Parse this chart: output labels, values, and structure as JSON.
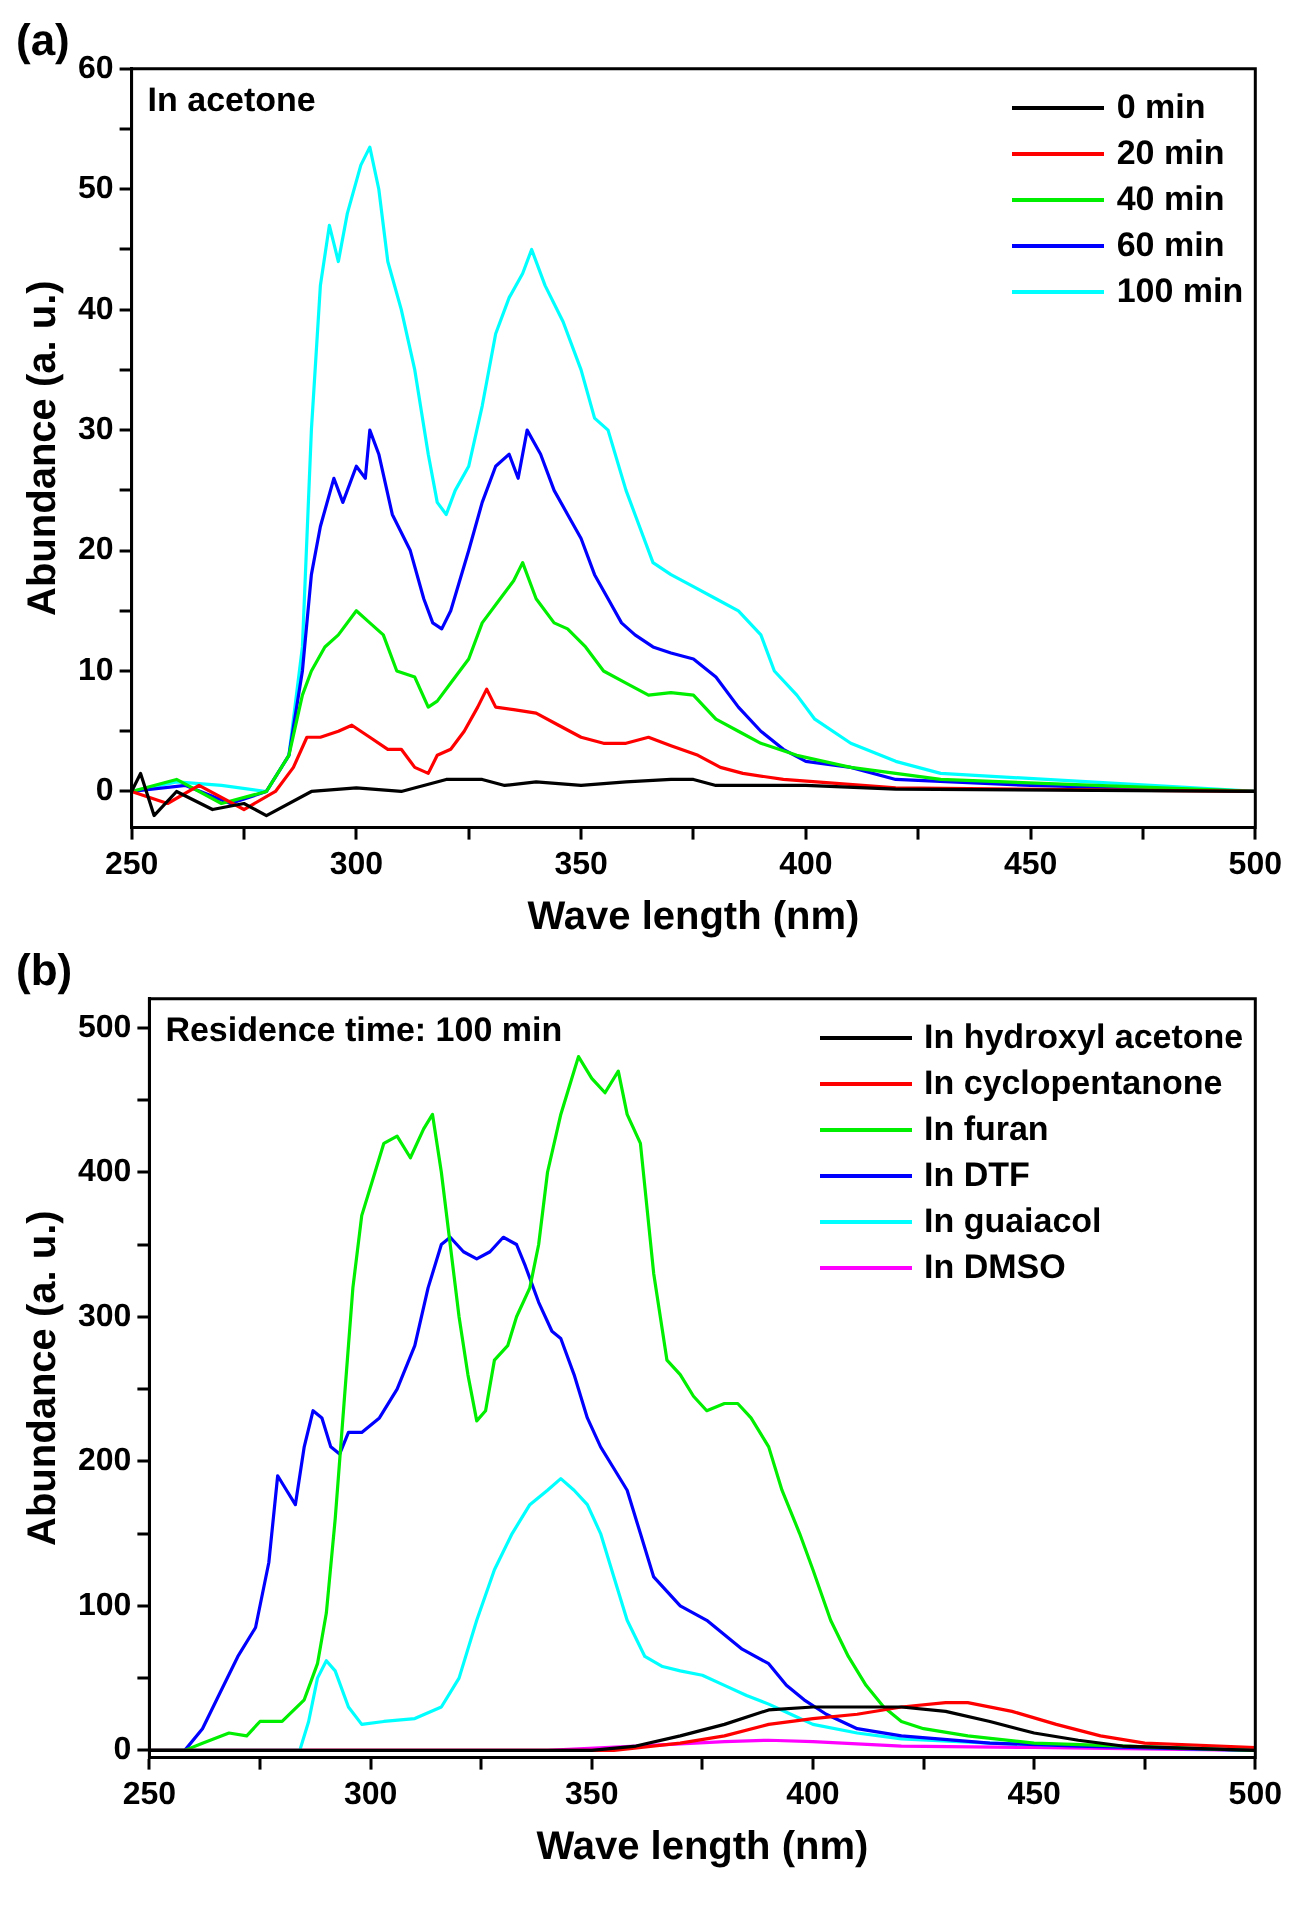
{
  "chart_data": [
    {
      "type": "line",
      "title": "(a)",
      "xlabel": "Wave length (nm)",
      "ylabel": "Abundance (a. u.)",
      "annotations": [
        "In acetone"
      ],
      "legend": "top right",
      "grid": false,
      "xlim": [
        250,
        500
      ],
      "xticks": [
        250,
        {
          "value": 275,
          "label": null
        },
        300,
        {
          "value": 325,
          "label": null
        },
        350,
        {
          "value": 375,
          "label": null
        },
        400,
        {
          "value": 425,
          "label": null
        },
        450,
        {
          "value": 475,
          "label": null
        },
        500
      ],
      "ylim": [
        -3,
        60
      ],
      "yticks": [
        0,
        {
          "value": 5,
          "label": null
        },
        10,
        {
          "value": 15,
          "label": null
        },
        20,
        {
          "value": 25,
          "label": null
        },
        30,
        {
          "value": 35,
          "label": null
        },
        40,
        {
          "value": 45,
          "label": null
        },
        50,
        {
          "value": 55,
          "label": null
        },
        60
      ],
      "series": [
        {
          "name": "0 min",
          "color": "#000000",
          "x": [
            250,
            252,
            255,
            260,
            268,
            275,
            280,
            290,
            300,
            310,
            320,
            328,
            333,
            340,
            350,
            360,
            370,
            375,
            380,
            390,
            400,
            420,
            500
          ],
          "values": [
            0,
            1.5,
            -2,
            0,
            -1.5,
            -1,
            -2,
            0,
            0.3,
            0,
            1,
            1,
            0.5,
            0.8,
            0.5,
            0.8,
            1,
            1,
            0.5,
            0.5,
            0.5,
            0.2,
            0
          ]
        },
        {
          "name": "20 min",
          "color": "#ff0000",
          "x": [
            250,
            258,
            265,
            275,
            282,
            286,
            289,
            292,
            296,
            299,
            303,
            307,
            310,
            313,
            316,
            318,
            321,
            324,
            327,
            329,
            331,
            335,
            340,
            345,
            350,
            355,
            360,
            365,
            370,
            376,
            381,
            386,
            395,
            420,
            500
          ],
          "values": [
            0,
            -1,
            0.5,
            -1.5,
            0,
            2,
            4.5,
            4.5,
            5,
            5.5,
            4.5,
            3.5,
            3.5,
            2,
            1.5,
            3,
            3.5,
            5,
            7,
            8.5,
            7,
            6.8,
            6.5,
            5.5,
            4.5,
            4,
            4,
            4.5,
            3.8,
            3,
            2,
            1.5,
            1,
            0.3,
            0
          ]
        },
        {
          "name": "40 min",
          "color": "#00ee00",
          "x": [
            250,
            260,
            270,
            280,
            285,
            288,
            290,
            293,
            296,
            300,
            303,
            306,
            309,
            313,
            316,
            318,
            321,
            325,
            328,
            332,
            335,
            337,
            340,
            344,
            347,
            351,
            355,
            360,
            365,
            370,
            375,
            380,
            385,
            390,
            398,
            410,
            430,
            500
          ],
          "values": [
            0,
            1,
            -1,
            0,
            3,
            8,
            10,
            12,
            13,
            15,
            14,
            13,
            10,
            9.5,
            7,
            7.5,
            9,
            11,
            14,
            16,
            17.5,
            19,
            16,
            14,
            13.5,
            12,
            10,
            9,
            8,
            8.2,
            8,
            6,
            5,
            4,
            3,
            2,
            1,
            0
          ]
        },
        {
          "name": "60 min",
          "color": "#0000ff",
          "x": [
            250,
            262,
            272,
            280,
            285,
            288,
            290,
            292,
            295,
            297,
            300,
            302,
            303,
            305,
            308,
            312,
            315,
            317,
            319,
            321,
            325,
            328,
            331,
            334,
            336,
            338,
            341,
            344,
            347,
            350,
            353,
            356,
            359,
            362,
            366,
            370,
            375,
            380,
            385,
            390,
            395,
            400,
            410,
            420,
            450,
            500
          ],
          "values": [
            0,
            0.5,
            -1,
            0,
            3,
            10,
            18,
            22,
            26,
            24,
            27,
            26,
            30,
            28,
            23,
            20,
            16,
            14,
            13.5,
            15,
            20,
            24,
            27,
            28,
            26,
            30,
            28,
            25,
            23,
            21,
            18,
            16,
            14,
            13,
            12,
            11.5,
            11,
            9.5,
            7,
            5,
            3.5,
            2.5,
            2,
            1,
            0.5,
            0
          ]
        },
        {
          "name": "100 min",
          "color": "#00ffff",
          "x": [
            250,
            260,
            270,
            280,
            285,
            288,
            290,
            292,
            294,
            296,
            298,
            301,
            303,
            305,
            307,
            310,
            313,
            316,
            318,
            320,
            322,
            325,
            328,
            331,
            334,
            337,
            339,
            342,
            346,
            350,
            353,
            356,
            360,
            362,
            366,
            370,
            375,
            380,
            385,
            390,
            393,
            398,
            402,
            410,
            420,
            430,
            500
          ],
          "values": [
            0,
            0.8,
            0.5,
            0,
            3,
            12,
            30,
            42,
            47,
            44,
            48,
            52,
            53.5,
            50,
            44,
            40,
            35,
            28,
            24,
            23,
            25,
            27,
            32,
            38,
            41,
            43,
            45,
            42,
            39,
            35,
            31,
            30,
            25,
            23,
            19,
            18,
            17,
            16,
            15,
            13,
            10,
            8,
            6,
            4,
            2.5,
            1.5,
            0
          ]
        }
      ]
    },
    {
      "type": "line",
      "title": "(b)",
      "xlabel": "Wave length (nm)",
      "ylabel": "Abundance (a. u.)",
      "annotations": [
        "Residence time: 100 min"
      ],
      "legend": "top right",
      "grid": false,
      "xlim": [
        250,
        500
      ],
      "xticks": [
        250,
        {
          "value": 275,
          "label": null
        },
        300,
        {
          "value": 325,
          "label": null
        },
        350,
        {
          "value": 375,
          "label": null
        },
        400,
        {
          "value": 425,
          "label": null
        },
        450,
        {
          "value": 475,
          "label": null
        },
        500
      ],
      "ylim": [
        -5,
        520
      ],
      "yticks": [
        0,
        {
          "value": 50,
          "label": null
        },
        100,
        {
          "value": 150,
          "label": null
        },
        200,
        {
          "value": 250,
          "label": null
        },
        300,
        {
          "value": 350,
          "label": null
        },
        400,
        {
          "value": 450,
          "label": null
        },
        500
      ],
      "series": [
        {
          "name": "In hydroxyl acetone",
          "color": "#000000",
          "x": [
            250,
            350,
            360,
            370,
            380,
            390,
            400,
            410,
            420,
            430,
            440,
            450,
            460,
            470,
            500
          ],
          "values": [
            0,
            0,
            3,
            10,
            18,
            28,
            30,
            30,
            30,
            27,
            20,
            12,
            7,
            3,
            0
          ]
        },
        {
          "name": "In cyclopentanone",
          "color": "#ff0000",
          "x": [
            250,
            355,
            370,
            380,
            390,
            400,
            410,
            420,
            430,
            435,
            445,
            455,
            465,
            475,
            500
          ],
          "values": [
            0,
            0,
            5,
            10,
            18,
            22,
            25,
            30,
            33,
            33,
            27,
            18,
            10,
            5,
            2
          ]
        },
        {
          "name": "In furan",
          "color": "#00ee00",
          "x": [
            250,
            258,
            262,
            268,
            272,
            275,
            280,
            285,
            288,
            290,
            292,
            294,
            296,
            298,
            301,
            303,
            306,
            309,
            312,
            314,
            316,
            318,
            320,
            322,
            324,
            326,
            328,
            331,
            333,
            336,
            338,
            340,
            343,
            346,
            347,
            350,
            353,
            356,
            358,
            361,
            364,
            367,
            370,
            373,
            376,
            380,
            383,
            386,
            390,
            393,
            397,
            400,
            404,
            408,
            412,
            416,
            420,
            425,
            435,
            450,
            500
          ],
          "values": [
            0,
            0,
            5,
            12,
            10,
            20,
            20,
            35,
            60,
            95,
            160,
            240,
            320,
            370,
            400,
            420,
            425,
            410,
            430,
            440,
            400,
            350,
            300,
            260,
            228,
            235,
            270,
            280,
            300,
            320,
            350,
            400,
            440,
            470,
            480,
            465,
            455,
            470,
            440,
            420,
            330,
            270,
            260,
            245,
            235,
            240,
            240,
            230,
            210,
            180,
            150,
            125,
            90,
            65,
            45,
            30,
            20,
            15,
            10,
            5,
            0
          ]
        },
        {
          "name": "In DTF",
          "color": "#0000ff",
          "x": [
            250,
            258,
            262,
            266,
            270,
            274,
            277,
            279,
            281,
            283,
            285,
            287,
            289,
            291,
            293,
            295,
            298,
            302,
            306,
            310,
            313,
            316,
            318,
            321,
            324,
            327,
            330,
            333,
            335,
            338,
            341,
            343,
            346,
            349,
            352,
            355,
            358,
            361,
            364,
            367,
            370,
            373,
            376,
            380,
            384,
            390,
            394,
            398,
            403,
            410,
            420,
            440,
            460,
            500
          ],
          "values": [
            0,
            0,
            15,
            40,
            65,
            85,
            130,
            190,
            180,
            170,
            210,
            235,
            230,
            210,
            205,
            220,
            220,
            230,
            250,
            280,
            320,
            350,
            355,
            345,
            340,
            345,
            355,
            350,
            335,
            310,
            290,
            285,
            260,
            230,
            210,
            195,
            180,
            150,
            120,
            110,
            100,
            95,
            90,
            80,
            70,
            60,
            45,
            35,
            25,
            15,
            10,
            5,
            3,
            0
          ]
        },
        {
          "name": "In guaiacol",
          "color": "#00ffff",
          "x": [
            250,
            284,
            286,
            288,
            290,
            292,
            295,
            298,
            303,
            310,
            316,
            320,
            324,
            328,
            332,
            336,
            340,
            343,
            346,
            349,
            352,
            355,
            358,
            362,
            366,
            370,
            375,
            380,
            385,
            390,
            395,
            400,
            410,
            420,
            440,
            500
          ],
          "values": [
            0,
            0,
            20,
            50,
            62,
            55,
            30,
            18,
            20,
            22,
            30,
            50,
            90,
            125,
            150,
            170,
            180,
            188,
            180,
            170,
            150,
            120,
            90,
            65,
            58,
            55,
            52,
            45,
            38,
            32,
            25,
            18,
            12,
            8,
            5,
            0
          ]
        },
        {
          "name": "In DMSO",
          "color": "#ff00ff",
          "x": [
            250,
            340,
            360,
            380,
            390,
            400,
            420,
            450,
            500
          ],
          "values": [
            0,
            0,
            3,
            6,
            7,
            6,
            3,
            2,
            0
          ]
        }
      ]
    }
  ]
}
